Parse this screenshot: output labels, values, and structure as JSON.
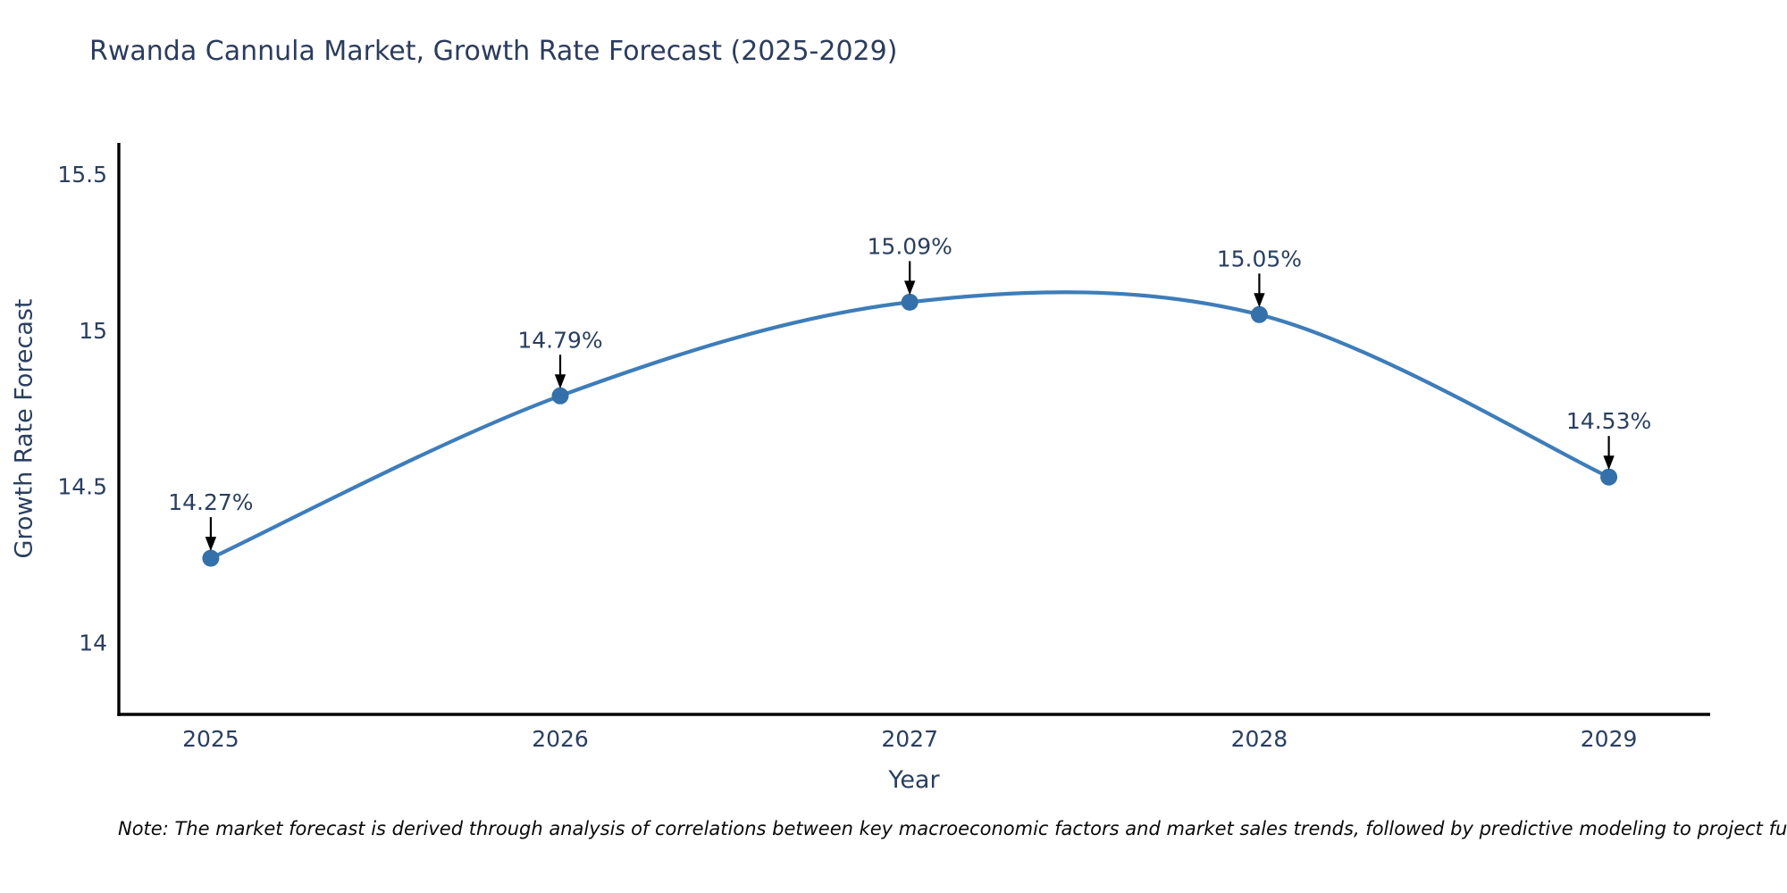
{
  "page": {
    "title": "Rwanda Cannula Market, Growth Rate Forecast (2025-2029)",
    "note": "Note: The market forecast is derived through analysis of correlations between key macroeconomic factors and market sales trends, followed by predictive modeling to project future sal"
  },
  "colors": {
    "line": "#3e7db9",
    "marker": "#3470a9",
    "axis": "#000000",
    "tick_text": "#2a3f5f",
    "annotation_text": "#2a3f5f",
    "annotation_arrow": "#000000",
    "title_text": "#2b3c5d",
    "background": "#ffffff"
  },
  "chart_data": {
    "type": "line",
    "line_shape": "spline",
    "title": "Rwanda Cannula Market, Growth Rate Forecast (2025-2029)",
    "xlabel": "Year",
    "ylabel": "Growth Rate Forecast",
    "x": [
      2025,
      2026,
      2027,
      2028,
      2029
    ],
    "series": [
      {
        "name": "Growth Rate Forecast",
        "values": [
          14.27,
          14.79,
          15.09,
          15.05,
          14.53
        ]
      }
    ],
    "point_labels": [
      "14.27%",
      "14.79%",
      "15.09%",
      "15.05%",
      "14.53%"
    ],
    "xtick_labels": [
      "2025",
      "2026",
      "2027",
      "2028",
      "2029"
    ],
    "yticks": [
      15.5,
      15,
      14.5,
      14
    ],
    "ytick_labels": [
      "15.5",
      "15",
      "14.5",
      "14"
    ],
    "xlim": [
      2024.737,
      2029.29
    ],
    "ylim": [
      13.77,
      15.6
    ],
    "grid": false,
    "legend_position": "none",
    "markers": true,
    "annotations_have_arrows": true
  }
}
